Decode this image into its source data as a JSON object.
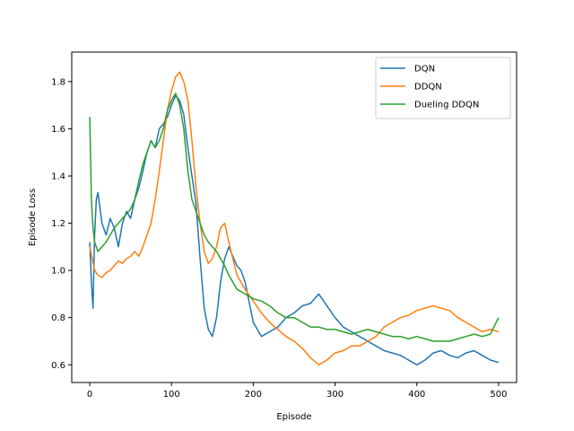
{
  "chart_data": {
    "type": "line",
    "title": "",
    "xlabel": "Episode",
    "ylabel": "Episode Loss",
    "xlim": [
      -22,
      522
    ],
    "ylim": [
      0.525,
      1.925
    ],
    "xticks": [
      0,
      100,
      200,
      300,
      400,
      500
    ],
    "yticks": [
      0.6,
      0.8,
      1.0,
      1.2,
      1.4,
      1.6,
      1.8
    ],
    "ytick_labels": [
      "0.6",
      "0.8",
      "1.0",
      "1.2",
      "1.4",
      "1.6",
      "1.8"
    ],
    "grid": false,
    "legend_position": "top-right",
    "series": [
      {
        "name": "DQN",
        "color": "#1f77b4",
        "x": [
          0,
          2,
          4,
          6,
          8,
          10,
          15,
          20,
          25,
          30,
          35,
          40,
          45,
          50,
          55,
          60,
          65,
          70,
          75,
          80,
          85,
          90,
          95,
          100,
          105,
          110,
          115,
          120,
          125,
          130,
          135,
          140,
          145,
          150,
          155,
          160,
          165,
          170,
          175,
          180,
          185,
          190,
          200,
          210,
          220,
          230,
          240,
          250,
          260,
          270,
          280,
          290,
          300,
          310,
          320,
          330,
          340,
          350,
          360,
          370,
          380,
          390,
          400,
          410,
          420,
          430,
          440,
          450,
          460,
          470,
          480,
          490,
          500
        ],
        "y": [
          1.12,
          0.95,
          0.84,
          1.15,
          1.3,
          1.33,
          1.2,
          1.15,
          1.22,
          1.18,
          1.1,
          1.2,
          1.25,
          1.22,
          1.3,
          1.35,
          1.42,
          1.5,
          1.55,
          1.52,
          1.6,
          1.62,
          1.65,
          1.7,
          1.74,
          1.72,
          1.66,
          1.52,
          1.4,
          1.28,
          1.05,
          0.84,
          0.75,
          0.72,
          0.8,
          0.95,
          1.05,
          1.1,
          1.06,
          1.02,
          1.0,
          0.95,
          0.78,
          0.72,
          0.74,
          0.76,
          0.8,
          0.82,
          0.85,
          0.86,
          0.9,
          0.85,
          0.8,
          0.76,
          0.74,
          0.72,
          0.7,
          0.68,
          0.66,
          0.65,
          0.64,
          0.62,
          0.6,
          0.62,
          0.65,
          0.66,
          0.64,
          0.63,
          0.65,
          0.66,
          0.64,
          0.62,
          0.61
        ]
      },
      {
        "name": "DDQN",
        "color": "#ff7f0e",
        "x": [
          0,
          3,
          6,
          10,
          15,
          20,
          25,
          30,
          35,
          40,
          45,
          50,
          55,
          60,
          65,
          70,
          75,
          80,
          85,
          90,
          95,
          100,
          105,
          110,
          115,
          120,
          125,
          130,
          135,
          140,
          145,
          150,
          155,
          160,
          165,
          170,
          175,
          180,
          190,
          200,
          210,
          220,
          230,
          240,
          250,
          260,
          270,
          280,
          290,
          300,
          310,
          320,
          330,
          340,
          350,
          360,
          370,
          380,
          390,
          400,
          410,
          420,
          430,
          440,
          450,
          460,
          470,
          480,
          490,
          500
        ],
        "y": [
          1.1,
          1.05,
          1.0,
          0.98,
          0.97,
          0.99,
          1.0,
          1.02,
          1.04,
          1.03,
          1.05,
          1.06,
          1.08,
          1.06,
          1.1,
          1.15,
          1.2,
          1.3,
          1.42,
          1.55,
          1.68,
          1.76,
          1.82,
          1.84,
          1.8,
          1.72,
          1.55,
          1.35,
          1.2,
          1.08,
          1.03,
          1.05,
          1.1,
          1.18,
          1.2,
          1.12,
          1.05,
          0.98,
          0.92,
          0.87,
          0.82,
          0.78,
          0.75,
          0.72,
          0.7,
          0.67,
          0.63,
          0.6,
          0.62,
          0.65,
          0.66,
          0.68,
          0.68,
          0.7,
          0.72,
          0.76,
          0.78,
          0.8,
          0.81,
          0.83,
          0.84,
          0.85,
          0.84,
          0.83,
          0.8,
          0.78,
          0.76,
          0.74,
          0.75,
          0.74
        ]
      },
      {
        "name": "Dueling DDQN",
        "color": "#2ca02c",
        "x": [
          0,
          2,
          4,
          6,
          8,
          10,
          15,
          20,
          25,
          30,
          35,
          40,
          45,
          50,
          55,
          60,
          65,
          70,
          75,
          80,
          85,
          90,
          95,
          100,
          105,
          110,
          115,
          120,
          125,
          130,
          135,
          140,
          145,
          150,
          155,
          160,
          165,
          170,
          175,
          180,
          190,
          200,
          210,
          220,
          230,
          240,
          250,
          260,
          270,
          280,
          290,
          300,
          310,
          320,
          330,
          340,
          350,
          360,
          370,
          380,
          390,
          400,
          410,
          420,
          430,
          440,
          450,
          460,
          470,
          480,
          490,
          500
        ],
        "y": [
          1.65,
          1.3,
          1.18,
          1.12,
          1.1,
          1.08,
          1.1,
          1.12,
          1.15,
          1.18,
          1.2,
          1.22,
          1.24,
          1.26,
          1.3,
          1.38,
          1.45,
          1.5,
          1.55,
          1.52,
          1.55,
          1.6,
          1.68,
          1.72,
          1.75,
          1.7,
          1.6,
          1.42,
          1.3,
          1.25,
          1.2,
          1.15,
          1.12,
          1.1,
          1.08,
          1.05,
          1.02,
          0.98,
          0.95,
          0.92,
          0.9,
          0.88,
          0.87,
          0.85,
          0.82,
          0.8,
          0.8,
          0.78,
          0.76,
          0.76,
          0.75,
          0.75,
          0.74,
          0.73,
          0.74,
          0.75,
          0.74,
          0.73,
          0.72,
          0.72,
          0.71,
          0.72,
          0.71,
          0.7,
          0.7,
          0.7,
          0.71,
          0.72,
          0.73,
          0.72,
          0.73,
          0.8
        ]
      }
    ]
  }
}
